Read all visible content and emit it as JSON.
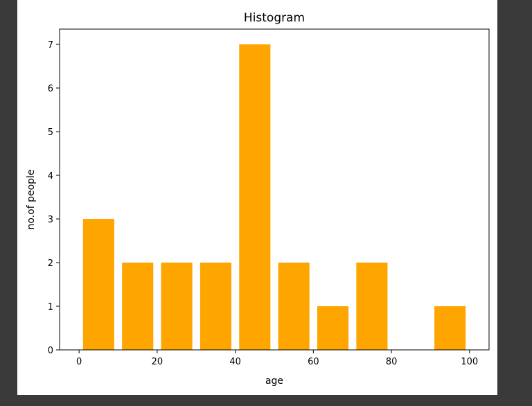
{
  "chart_data": {
    "type": "bar",
    "title": "Histogram",
    "xlabel": "age",
    "ylabel": "no.of people",
    "bar_color": "#ffa500",
    "bins": [
      {
        "start": 0,
        "end": 10,
        "value": 3
      },
      {
        "start": 10,
        "end": 20,
        "value": 2
      },
      {
        "start": 20,
        "end": 30,
        "value": 2
      },
      {
        "start": 30,
        "end": 40,
        "value": 2
      },
      {
        "start": 40,
        "end": 50,
        "value": 7
      },
      {
        "start": 50,
        "end": 60,
        "value": 2
      },
      {
        "start": 60,
        "end": 70,
        "value": 1
      },
      {
        "start": 70,
        "end": 80,
        "value": 2
      },
      {
        "start": 80,
        "end": 90,
        "value": 0
      },
      {
        "start": 90,
        "end": 100,
        "value": 1
      }
    ],
    "bar_width_fraction": 0.8,
    "xlim": [
      -5,
      105
    ],
    "ylim": [
      0,
      7.35
    ],
    "xticks": [
      "0",
      "20",
      "40",
      "60",
      "80",
      "100"
    ],
    "xtick_values": [
      0,
      20,
      40,
      60,
      80,
      100
    ],
    "yticks": [
      "0",
      "1",
      "2",
      "3",
      "4",
      "5",
      "6",
      "7"
    ],
    "ytick_values": [
      0,
      1,
      2,
      3,
      4,
      5,
      6,
      7
    ],
    "grid": false,
    "legend": "none"
  }
}
